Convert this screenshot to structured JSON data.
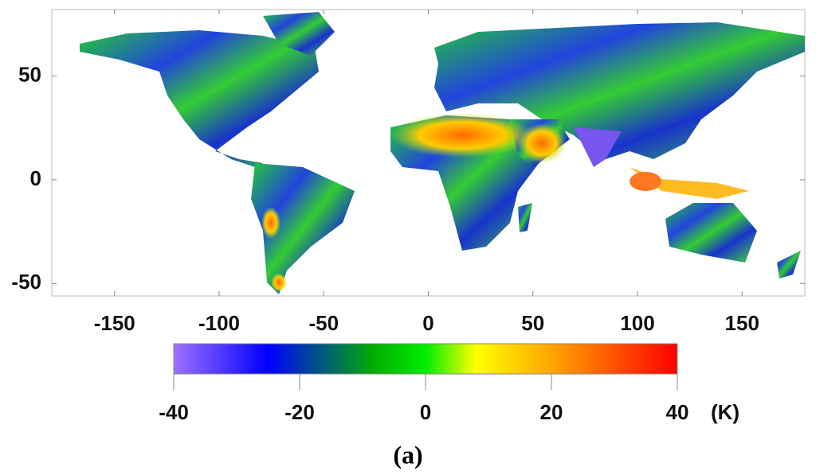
{
  "map": {
    "xlim": [
      -180,
      180
    ],
    "ylim": [
      -56,
      82
    ],
    "xticks": [
      -150,
      -100,
      -50,
      0,
      50,
      100,
      150
    ],
    "yticks": [
      -50,
      0,
      50
    ]
  },
  "colorbar": {
    "lim": [
      -40,
      40
    ],
    "ticks": [
      -40,
      -20,
      0,
      20,
      40
    ],
    "unit": "(K)",
    "stops": [
      {
        "value": -40,
        "color": "#a070ff"
      },
      {
        "value": -25,
        "color": "#0000ff"
      },
      {
        "value": -8,
        "color": "#00b000"
      },
      {
        "value": 0,
        "color": "#00ee00"
      },
      {
        "value": 8,
        "color": "#ffff00"
      },
      {
        "value": 20,
        "color": "#ffa500"
      },
      {
        "value": 40,
        "color": "#ff0000"
      }
    ]
  },
  "caption": "(a)"
}
